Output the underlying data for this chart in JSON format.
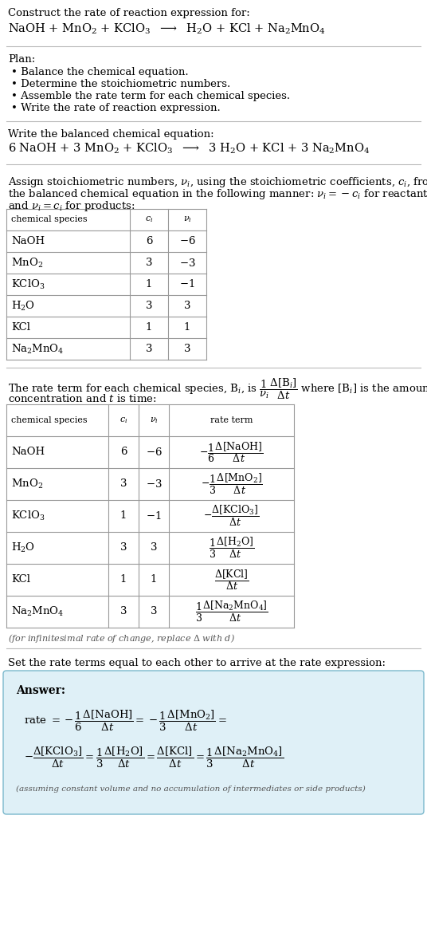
{
  "bg_color": "#ffffff",
  "text_color": "#000000",
  "table_line_color": "#999999",
  "answer_box_color": "#dff0f7",
  "answer_box_border": "#7ab8cc",
  "title_text": "Construct the rate of reaction expression for:",
  "reaction_unbalanced": "NaOH + MnO$_2$ + KClO$_3$  $\\longrightarrow$  H$_2$O + KCl + Na$_2$MnO$_4$",
  "plan_title": "Plan:",
  "plan_items": [
    "Balance the chemical equation.",
    "Determine the stoichiometric numbers.",
    "Assemble the rate term for each chemical species.",
    "Write the rate of reaction expression."
  ],
  "balanced_title": "Write the balanced chemical equation:",
  "reaction_balanced": "6 NaOH + 3 MnO$_2$ + KClO$_3$  $\\longrightarrow$  3 H$_2$O + KCl + 3 Na$_2$MnO$_4$",
  "stoich_intro_line1": "Assign stoichiometric numbers, $\\nu_i$, using the stoichiometric coefficients, $c_i$, from",
  "stoich_intro_line2": "the balanced chemical equation in the following manner: $\\nu_i = -c_i$ for reactants",
  "stoich_intro_line3": "and $\\nu_i = c_i$ for products:",
  "table1_headers": [
    "chemical species",
    "$c_i$",
    "$\\nu_i$"
  ],
  "table1_rows": [
    [
      "NaOH",
      "6",
      "$-6$"
    ],
    [
      "MnO$_2$",
      "3",
      "$-3$"
    ],
    [
      "KClO$_3$",
      "1",
      "$-1$"
    ],
    [
      "H$_2$O",
      "3",
      "3"
    ],
    [
      "KCl",
      "1",
      "1"
    ],
    [
      "Na$_2$MnO$_4$",
      "3",
      "3"
    ]
  ],
  "rate_intro_line1": "The rate term for each chemical species, B$_i$, is $\\dfrac{1}{\\nu_i}\\dfrac{\\Delta[\\mathrm{B}_i]}{\\Delta t}$ where [B$_i$] is the amount",
  "rate_intro_line2": "concentration and $t$ is time:",
  "table2_headers": [
    "chemical species",
    "$c_i$",
    "$\\nu_i$",
    "rate term"
  ],
  "table2_rows": [
    [
      "NaOH",
      "6",
      "$-6$",
      "$-\\dfrac{1}{6}\\dfrac{\\Delta[\\mathrm{NaOH}]}{\\Delta t}$"
    ],
    [
      "MnO$_2$",
      "3",
      "$-3$",
      "$-\\dfrac{1}{3}\\dfrac{\\Delta[\\mathrm{MnO_2}]}{\\Delta t}$"
    ],
    [
      "KClO$_3$",
      "1",
      "$-1$",
      "$-\\dfrac{\\Delta[\\mathrm{KClO_3}]}{\\Delta t}$"
    ],
    [
      "H$_2$O",
      "3",
      "3",
      "$\\dfrac{1}{3}\\dfrac{\\Delta[\\mathrm{H_2O}]}{\\Delta t}$"
    ],
    [
      "KCl",
      "1",
      "1",
      "$\\dfrac{\\Delta[\\mathrm{KCl}]}{\\Delta t}$"
    ],
    [
      "Na$_2$MnO$_4$",
      "3",
      "3",
      "$\\dfrac{1}{3}\\dfrac{\\Delta[\\mathrm{Na_2MnO_4}]}{\\Delta t}$"
    ]
  ],
  "infinitesimal_note": "(for infinitesimal rate of change, replace $\\Delta$ with $d$)",
  "set_equal_text": "Set the rate terms equal to each other to arrive at the rate expression:",
  "answer_label": "Answer:",
  "answer_line1": "rate $= -\\dfrac{1}{6}\\dfrac{\\Delta[\\mathrm{NaOH}]}{\\Delta t} = -\\dfrac{1}{3}\\dfrac{\\Delta[\\mathrm{MnO_2}]}{\\Delta t} =$",
  "answer_line2": "$-\\dfrac{\\Delta[\\mathrm{KClO_3}]}{\\Delta t} = \\dfrac{1}{3}\\dfrac{\\Delta[\\mathrm{H_2O}]}{\\Delta t} = \\dfrac{\\Delta[\\mathrm{KCl}]}{\\Delta t} = \\dfrac{1}{3}\\dfrac{\\Delta[\\mathrm{Na_2MnO_4}]}{\\Delta t}$",
  "answer_note": "(assuming constant volume and no accumulation of intermediates or side products)",
  "fs": 9.5,
  "fs_small": 8.0,
  "fs_reaction": 10.5
}
